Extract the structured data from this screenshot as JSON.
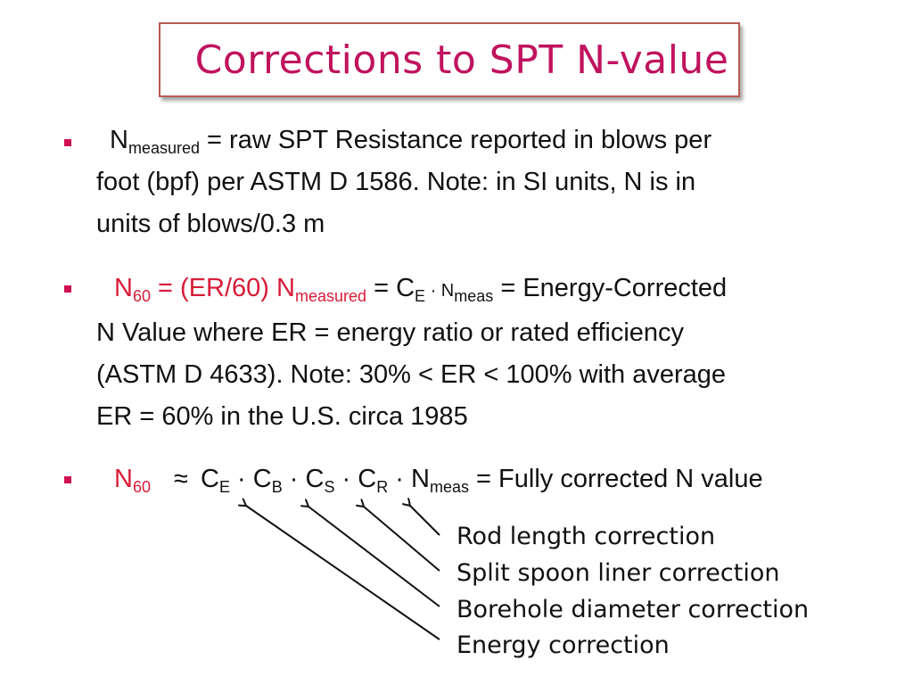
{
  "title": "Corrections to SPT N-value",
  "bullets": [
    {
      "n_main": "N",
      "n_sub": "measured",
      "rest_line1": " = raw SPT Resistance reported in blows per",
      "line2": "foot (bpf) per ASTM D 1586.  Note: in SI units, N is in",
      "line3": "units of blows/0.3 m"
    },
    {
      "n60_main": "N",
      "n60_sub": "60",
      "eq": " = ",
      "er": "(ER/60) N",
      "meas_sub": "measured",
      "ce_text": " = C",
      "ce_sub": "E",
      "dot_n": " · N",
      "meas2_sub": "meas",
      "energy": " = Energy-Corrected",
      "line2": "N Value where ER = energy ratio or rated efficiency",
      "line3": "(ASTM D 4633).  Note:  30% < ER < 100% with average",
      "line4": "ER = 60% in the U.S. circa 1985"
    },
    {
      "n60_main": "N",
      "n60_sub": "60",
      "approx": "≈",
      "c1": "C",
      "c1_sub": "E",
      "c2": "C",
      "c2_sub": "B",
      "c3": "C",
      "c3_sub": "S",
      "c4": "C",
      "c4_sub": "R",
      "n_last": "N",
      "n_last_sub": "meas",
      "tail": " = Fully corrected N value"
    }
  ],
  "annotations": [
    "Rod length correction",
    "Split spoon liner correction",
    "Borehole diameter correction",
    "Energy correction"
  ],
  "colors": {
    "title": "#c0135e",
    "bullet": "#d0104f",
    "accent_red": "#d81b38",
    "title_border": "#b85c55"
  }
}
